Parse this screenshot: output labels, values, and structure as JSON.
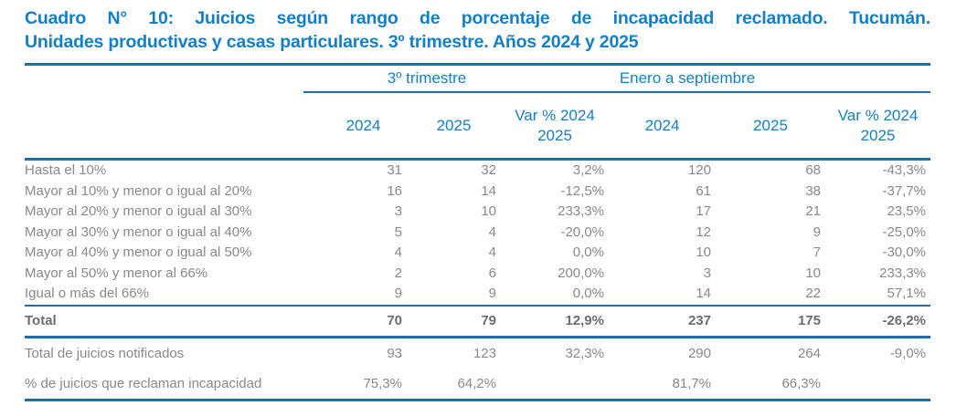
{
  "title": {
    "line1": "Cuadro N° 10: Juicios según rango de porcentaje de incapacidad reclamado. Tucumán.",
    "line2": "Unidades productivas y casas particulares.  3º trimestre. Años 2024 y 2025"
  },
  "table": {
    "groups": [
      {
        "label": "3º trimestre"
      },
      {
        "label": "Enero a septiembre"
      }
    ],
    "columns": [
      "2024",
      "2025",
      "Var %  2024\n2025",
      "2024",
      "2025",
      "Var %  2024\n2025"
    ],
    "rows": [
      {
        "label": "Hasta el 10%",
        "values": [
          "31",
          "32",
          "3,2%",
          "120",
          "68",
          "-43,3%"
        ]
      },
      {
        "label": "Mayor al 10% y menor o igual al 20%",
        "values": [
          "16",
          "14",
          "-12,5%",
          "61",
          "38",
          "-37,7%"
        ]
      },
      {
        "label": "Mayor al 20% y menor o igual al 30%",
        "values": [
          "3",
          "10",
          "233,3%",
          "17",
          "21",
          "23,5%"
        ]
      },
      {
        "label": "Mayor al 30% y menor o igual al 40%",
        "values": [
          "5",
          "4",
          "-20,0%",
          "12",
          "9",
          "-25,0%"
        ]
      },
      {
        "label": "Mayor al 40% y menor o igual al 50%",
        "values": [
          "4",
          "4",
          "0,0%",
          "10",
          "7",
          "-30,0%"
        ]
      },
      {
        "label": "Mayor al 50% y menor al 66%",
        "values": [
          "2",
          "6",
          "200,0%",
          "3",
          "10",
          "233,3%"
        ]
      },
      {
        "label": "Igual o más del 66%",
        "values": [
          "9",
          "9",
          "0,0%",
          "14",
          "22",
          "57,1%"
        ]
      }
    ],
    "total_row": {
      "label": "Total",
      "values": [
        "70",
        "79",
        "12,9%",
        "237",
        "175",
        "-26,2%"
      ]
    },
    "footer_rows": [
      {
        "label": "Total de juicios notificados",
        "values": [
          "93",
          "123",
          "32,3%",
          "290",
          "264",
          "-9,0%"
        ]
      },
      {
        "label": "% de juicios que reclaman incapacidad",
        "values": [
          "75,3%",
          "64,2%",
          "",
          "81,7%",
          "66,3%",
          ""
        ]
      }
    ]
  },
  "colors": {
    "title_blue": "#1380c6",
    "rule_blue": "#1c6fad",
    "body_gray": "#87898c",
    "total_gray": "#6a6d71",
    "background": "#ffffff"
  }
}
